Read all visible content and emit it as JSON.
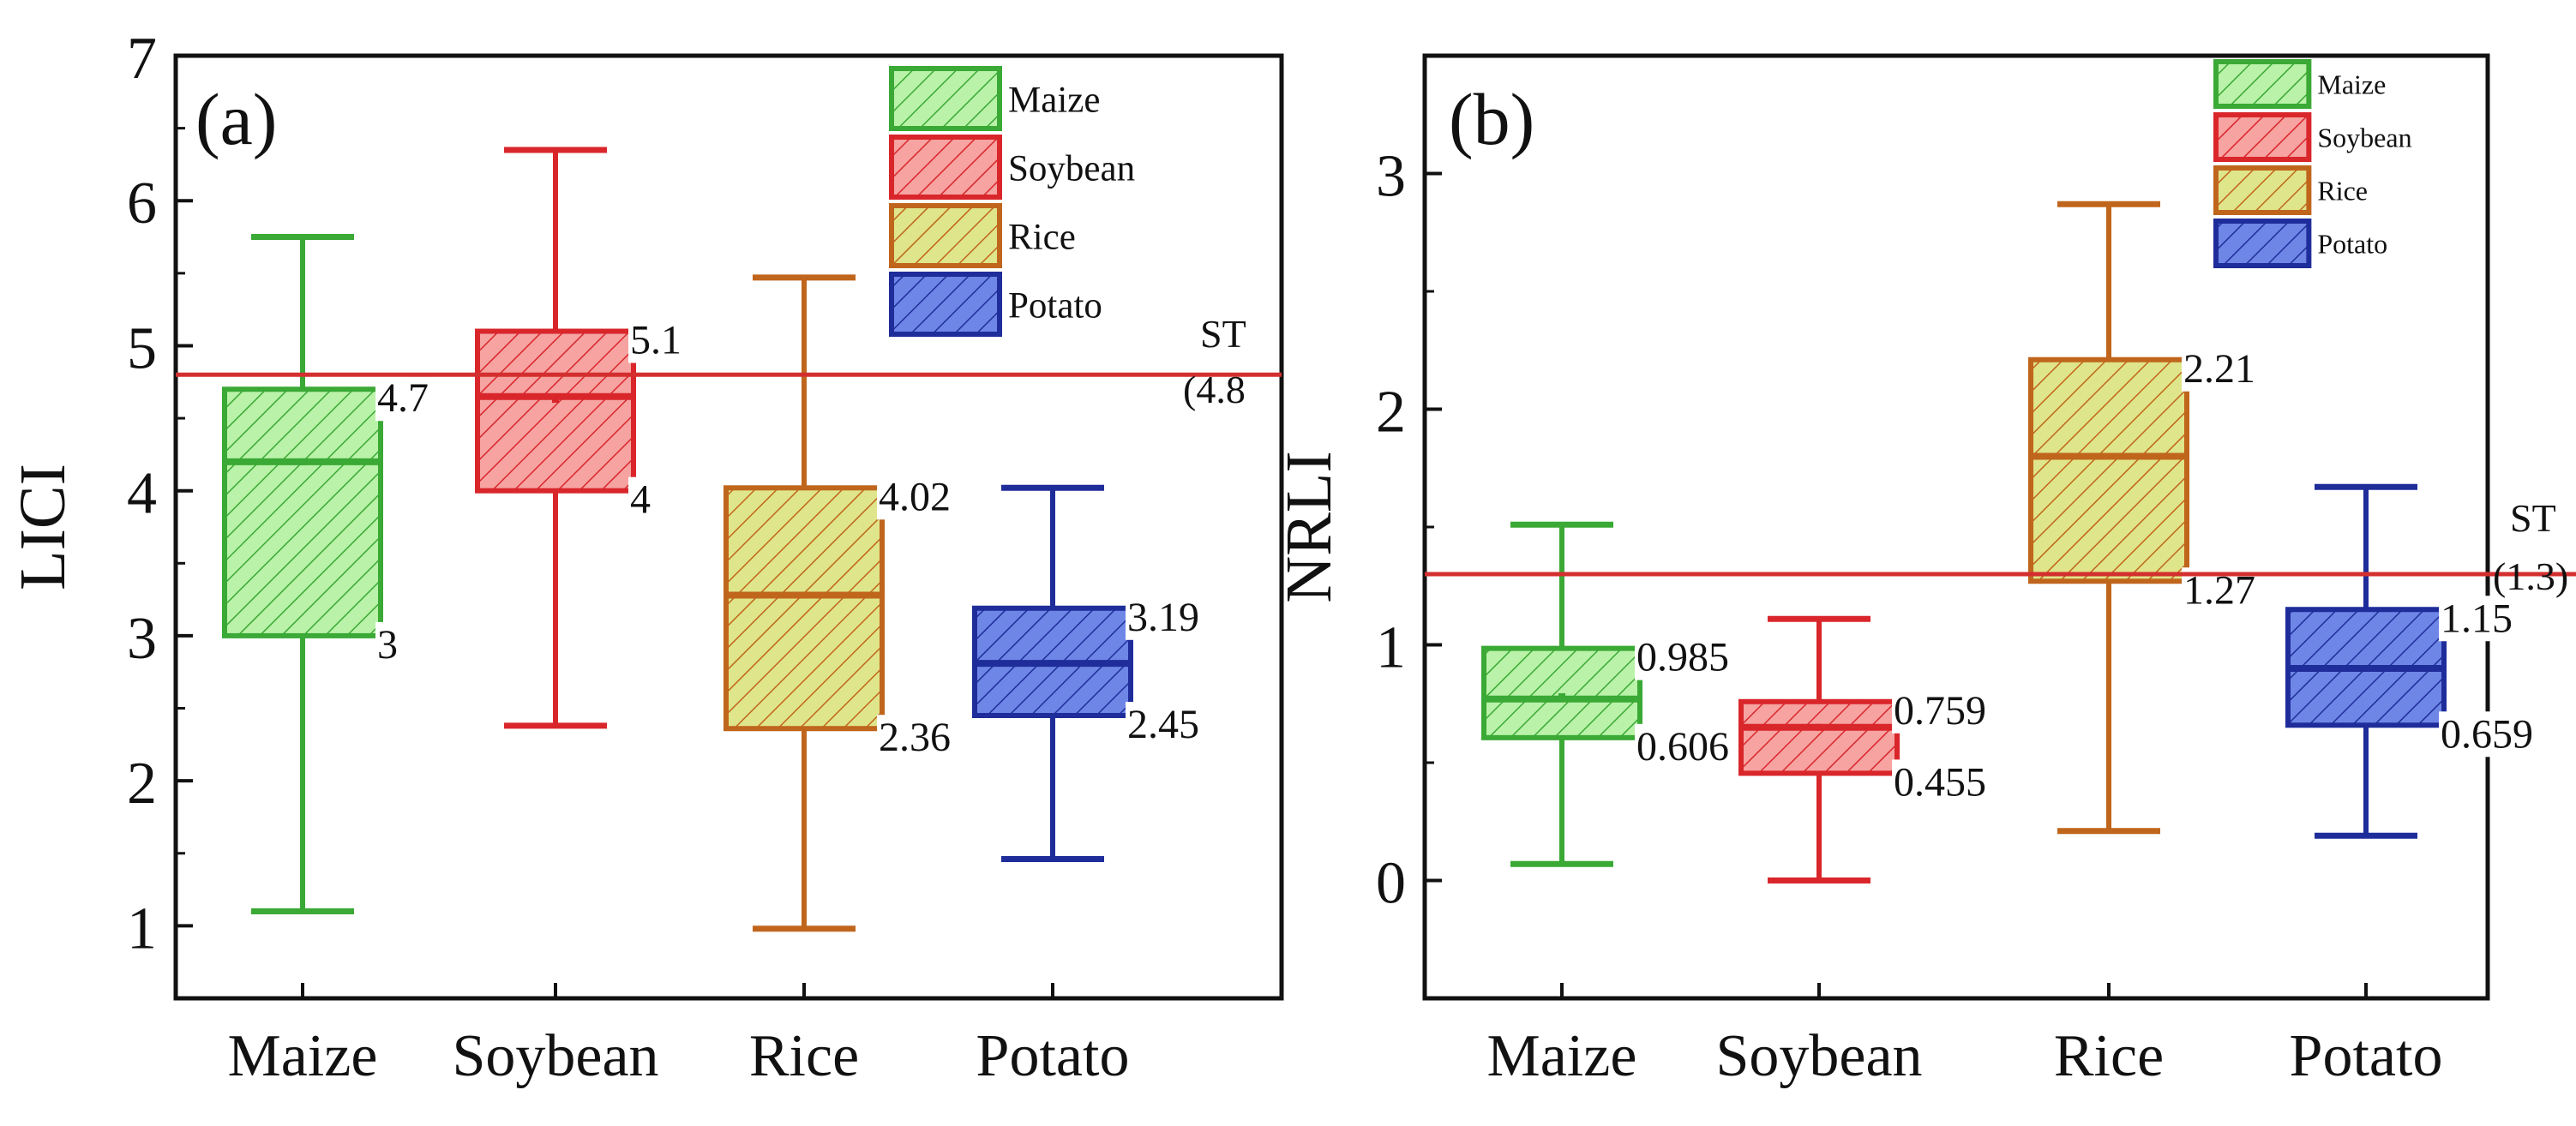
{
  "colors": {
    "Maize": {
      "stroke": "#3aa935",
      "fill": "#b9f2a8"
    },
    "Soybean": {
      "stroke": "#d9262b",
      "fill": "#f6a3a1"
    },
    "Rice": {
      "stroke": "#c0651c",
      "fill": "#dfe58a"
    },
    "Potato": {
      "stroke": "#1f2d9a",
      "fill": "#6e86e6"
    },
    "st_line": "#d32f2f",
    "axis": "#111111"
  },
  "chart_data": [
    {
      "type": "box",
      "panel_label": "(a)",
      "ylabel": "LICI",
      "xlabel": "",
      "ylim": [
        0.5,
        7
      ],
      "yticks": [
        1,
        2,
        3,
        4,
        5,
        6,
        7
      ],
      "categories": [
        "Maize",
        "Soybean",
        "Rice",
        "Potato"
      ],
      "legend": [
        "Maize",
        "Soybean",
        "Rice",
        "Potato"
      ],
      "legend_position": "top-right",
      "threshold": {
        "value": 4.8,
        "label_line1": "ST",
        "label_line2": "(4.8"
      },
      "boxes": [
        {
          "name": "Maize",
          "whisker_low": 1.1,
          "q1": 3.0,
          "median": 4.2,
          "mean": 4.2,
          "q3": 4.7,
          "whisker_high": 5.75,
          "q3_label": "4.7",
          "q1_label": "3"
        },
        {
          "name": "Soybean",
          "whisker_low": 2.38,
          "q1": 4.0,
          "median": 4.65,
          "mean": 4.63,
          "q3": 5.1,
          "whisker_high": 6.35,
          "q3_label": "5.1",
          "q1_label": "4"
        },
        {
          "name": "Rice",
          "whisker_low": 0.98,
          "q1": 2.36,
          "median": 3.28,
          "mean": 3.28,
          "q3": 4.02,
          "whisker_high": 5.47,
          "q3_label": "4.02",
          "q1_label": "2.36"
        },
        {
          "name": "Potato",
          "whisker_low": 1.46,
          "q1": 2.45,
          "median": 2.81,
          "mean": 2.81,
          "q3": 3.19,
          "whisker_high": 4.02,
          "q3_label": "3.19",
          "q1_label": "2.45"
        }
      ]
    },
    {
      "type": "box",
      "panel_label": "(b)",
      "ylabel": "NRLI",
      "xlabel": "",
      "ylim": [
        -0.5,
        3.5
      ],
      "yticks": [
        0,
        1,
        2,
        3
      ],
      "categories": [
        "Maize",
        "Soybean",
        "Rice",
        "Potato"
      ],
      "legend": [
        "Maize",
        "Soybean",
        "Rice",
        "Potato"
      ],
      "legend_position": "top-right",
      "threshold": {
        "value": 1.3,
        "label_line1": "ST",
        "label_line2": "(1.3)"
      },
      "boxes": [
        {
          "name": "Maize",
          "whisker_low": 0.07,
          "q1": 0.606,
          "median": 0.77,
          "mean": 0.78,
          "q3": 0.985,
          "whisker_high": 1.51,
          "q3_label": "0.985",
          "q1_label": "0.606"
        },
        {
          "name": "Soybean",
          "whisker_low": 0.0,
          "q1": 0.455,
          "median": 0.65,
          "mean": 0.65,
          "q3": 0.759,
          "whisker_high": 1.11,
          "q3_label": "0.759",
          "q1_label": "0.455"
        },
        {
          "name": "Rice",
          "whisker_low": 0.21,
          "q1": 1.27,
          "median": 1.8,
          "mean": 1.8,
          "q3": 2.21,
          "whisker_high": 2.87,
          "q3_label": "2.21",
          "q1_label": "1.27"
        },
        {
          "name": "Potato",
          "whisker_low": 0.19,
          "q1": 0.659,
          "median": 0.9,
          "mean": 0.9,
          "q3": 1.15,
          "whisker_high": 1.67,
          "q3_label": "1.15",
          "q1_label": "0.659"
        }
      ]
    }
  ]
}
